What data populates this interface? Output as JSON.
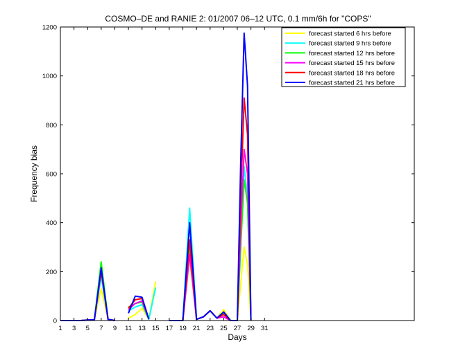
{
  "chart_data": {
    "type": "line",
    "title": "COSMO–DE and RANIE 2: 01/2007 06–12 UTC, 0.1 mm/6h for \"COPS\"",
    "xlabel": "Days",
    "ylabel": "Frequency bias",
    "xlim": [
      1,
      53
    ],
    "ylim": [
      0,
      1200
    ],
    "xticks": [
      "1",
      "3",
      "5",
      "7",
      "9",
      "11",
      "13",
      "15",
      "17",
      "19",
      "21",
      "23",
      "25",
      "27",
      "29",
      "31"
    ],
    "yticks": [
      "0",
      "200",
      "400",
      "600",
      "800",
      "1000",
      "1200"
    ],
    "legend_position": "top-right",
    "grid": false,
    "series": [
      {
        "name": "forecast started 6 hrs before",
        "color": "#ffff00",
        "points": [
          [
            [
              1,
              0
            ],
            [
              2,
              0
            ],
            [
              3,
              0
            ],
            [
              4,
              0
            ],
            [
              5,
              2
            ],
            [
              6,
              3
            ],
            [
              7,
              130
            ],
            [
              8,
              5
            ],
            [
              9,
              0
            ]
          ],
          [
            [
              11,
              10
            ],
            [
              12,
              25
            ],
            [
              13,
              50
            ],
            [
              14,
              5
            ],
            [
              15,
              160
            ]
          ],
          [
            [
              17,
              0
            ],
            [
              18,
              0
            ],
            [
              19,
              0
            ],
            [
              20,
              250
            ],
            [
              21,
              5
            ],
            [
              22,
              15
            ],
            [
              23,
              40
            ],
            [
              24,
              10
            ],
            [
              25,
              45
            ],
            [
              26,
              0
            ],
            [
              27,
              0
            ],
            [
              27.5,
              150
            ],
            [
              28,
              300
            ],
            [
              28.5,
              230
            ],
            [
              29,
              0
            ]
          ]
        ]
      },
      {
        "name": "forecast started 9 hrs before",
        "color": "#00ffff",
        "points": [
          [
            [
              1,
              0
            ],
            [
              2,
              0
            ],
            [
              3,
              0
            ],
            [
              4,
              0
            ],
            [
              5,
              2
            ],
            [
              6,
              3
            ],
            [
              7,
              180
            ],
            [
              8,
              5
            ],
            [
              9,
              0
            ]
          ],
          [
            [
              11,
              40
            ],
            [
              12,
              55
            ],
            [
              13,
              65
            ],
            [
              14,
              5
            ],
            [
              15,
              135
            ]
          ],
          [
            [
              17,
              0
            ],
            [
              18,
              0
            ],
            [
              19,
              0
            ],
            [
              20,
              460
            ],
            [
              21,
              5
            ],
            [
              22,
              15
            ],
            [
              23,
              40
            ],
            [
              24,
              10
            ],
            [
              25,
              35
            ],
            [
              26,
              0
            ],
            [
              27,
              0
            ],
            [
              27.5,
              350
            ],
            [
              28,
              630
            ],
            [
              28.5,
              500
            ],
            [
              29,
              0
            ]
          ]
        ]
      },
      {
        "name": "forecast started 12 hrs before",
        "color": "#00ff00",
        "points": [
          [
            [
              1,
              0
            ],
            [
              2,
              0
            ],
            [
              3,
              0
            ],
            [
              4,
              0
            ],
            [
              5,
              2
            ],
            [
              6,
              3
            ],
            [
              7,
              240
            ],
            [
              8,
              5
            ],
            [
              9,
              0
            ]
          ],
          [
            [
              11,
              55
            ],
            [
              12,
              70
            ],
            [
              13,
              75
            ],
            [
              14,
              5
            ]
          ],
          [
            [
              17,
              0
            ],
            [
              18,
              0
            ],
            [
              19,
              0
            ],
            [
              20,
              300
            ],
            [
              21,
              5
            ],
            [
              22,
              15
            ],
            [
              23,
              40
            ],
            [
              24,
              10
            ],
            [
              25,
              30
            ],
            [
              26,
              0
            ],
            [
              27,
              0
            ],
            [
              27.5,
              300
            ],
            [
              28,
              575
            ],
            [
              28.5,
              480
            ],
            [
              29,
              0
            ]
          ]
        ]
      },
      {
        "name": "forecast started 15 hrs before",
        "color": "#ff00ff",
        "points": [
          [
            [
              1,
              0
            ],
            [
              2,
              0
            ],
            [
              3,
              0
            ],
            [
              4,
              0
            ],
            [
              5,
              2
            ],
            [
              6,
              3
            ],
            [
              7,
              200
            ],
            [
              8,
              5
            ],
            [
              9,
              0
            ]
          ],
          [
            [
              11,
              45
            ],
            [
              12,
              70
            ],
            [
              13,
              80
            ],
            [
              14,
              5
            ]
          ],
          [
            [
              17,
              0
            ],
            [
              18,
              0
            ],
            [
              19,
              0
            ],
            [
              20,
              270
            ],
            [
              21,
              5
            ],
            [
              22,
              15
            ],
            [
              23,
              40
            ],
            [
              24,
              10
            ],
            [
              25,
              15
            ],
            [
              26,
              0
            ],
            [
              27,
              0
            ],
            [
              27.5,
              380
            ],
            [
              28,
              700
            ],
            [
              28.5,
              600
            ],
            [
              29,
              0
            ]
          ]
        ]
      },
      {
        "name": "forecast started 18 hrs before",
        "color": "#ff0000",
        "points": [
          [
            [
              1,
              0
            ],
            [
              2,
              0
            ],
            [
              3,
              0
            ],
            [
              4,
              0
            ],
            [
              5,
              2
            ],
            [
              6,
              3
            ],
            [
              7,
              205
            ],
            [
              8,
              5
            ],
            [
              9,
              0
            ]
          ],
          [
            [
              11,
              50
            ],
            [
              12,
              85
            ],
            [
              13,
              90
            ],
            [
              14,
              5
            ]
          ],
          [
            [
              17,
              0
            ],
            [
              18,
              0
            ],
            [
              19,
              0
            ],
            [
              20,
              330
            ],
            [
              21,
              5
            ],
            [
              22,
              15
            ],
            [
              23,
              40
            ],
            [
              24,
              10
            ],
            [
              25,
              25
            ],
            [
              26,
              0
            ],
            [
              27,
              0
            ],
            [
              27.5,
              500
            ],
            [
              28,
              910
            ],
            [
              28.5,
              760
            ],
            [
              29,
              0
            ]
          ]
        ]
      },
      {
        "name": "forecast started 21 hrs before",
        "color": "#0000ff",
        "points": [
          [
            [
              1,
              0
            ],
            [
              2,
              0
            ],
            [
              3,
              0
            ],
            [
              4,
              0
            ],
            [
              5,
              2
            ],
            [
              6,
              3
            ],
            [
              7,
              215
            ],
            [
              8,
              5
            ],
            [
              9,
              0
            ]
          ],
          [
            [
              11,
              30
            ],
            [
              12,
              100
            ],
            [
              13,
              95
            ],
            [
              14,
              5
            ]
          ],
          [
            [
              17,
              0
            ],
            [
              18,
              0
            ],
            [
              19,
              0
            ],
            [
              20,
              400
            ],
            [
              21,
              5
            ],
            [
              22,
              15
            ],
            [
              23,
              40
            ],
            [
              24,
              10
            ],
            [
              25,
              35
            ],
            [
              26,
              0
            ],
            [
              27,
              0
            ],
            [
              27.5,
              650
            ],
            [
              28,
              1175
            ],
            [
              28.5,
              960
            ],
            [
              29,
              0
            ]
          ]
        ]
      }
    ]
  }
}
